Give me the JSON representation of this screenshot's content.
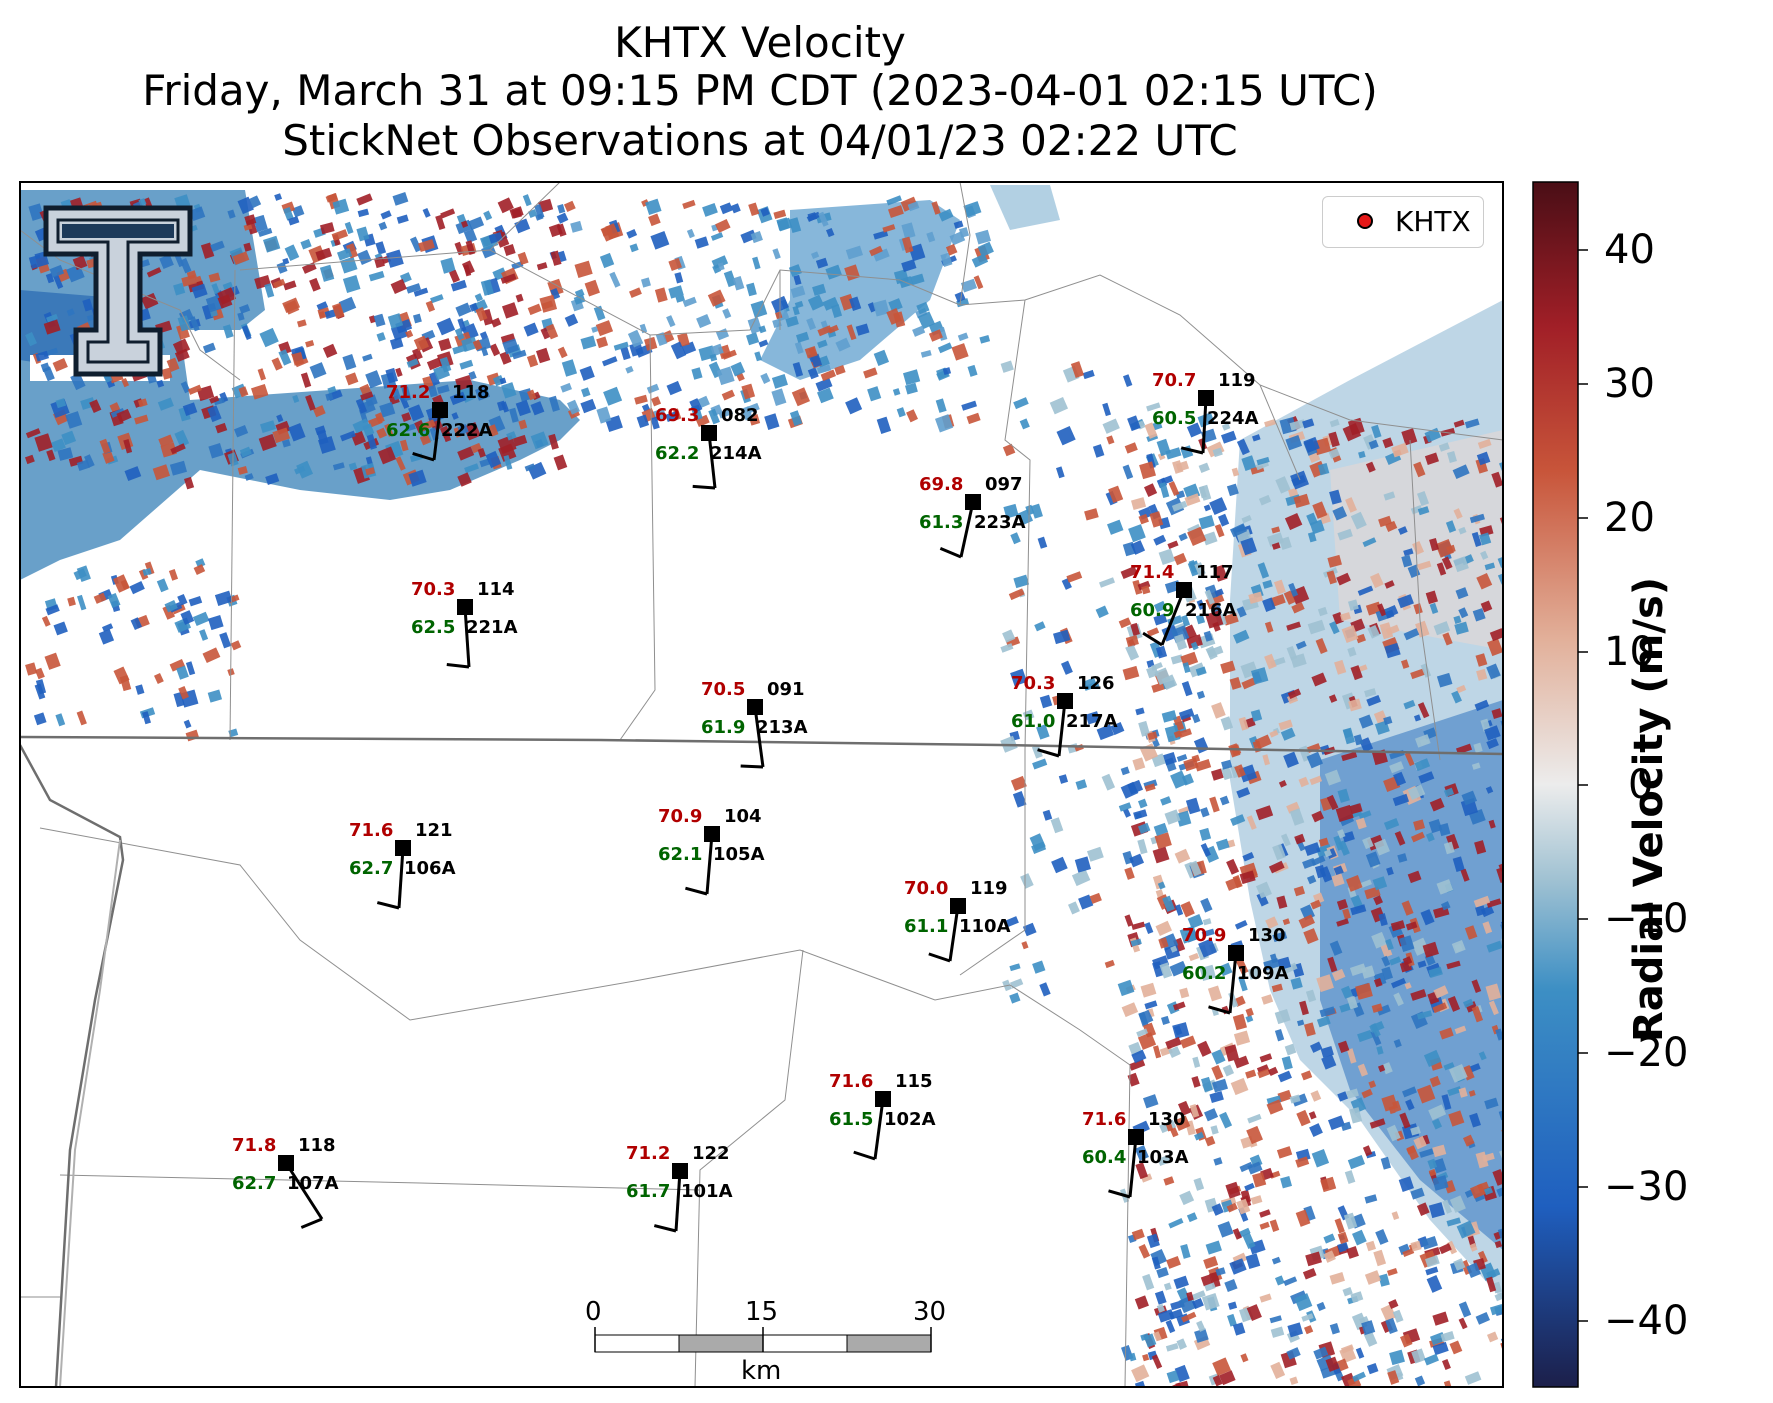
{
  "title": {
    "line1": "KHTX Velocity",
    "line2": "Friday, March 31 at 09:15 PM CDT (2023-04-01 02:15 UTC)",
    "line3": "StickNet Observations at 04/01/23 02:22 UTC"
  },
  "legend": {
    "label": "KHTX",
    "marker_color": "#e51818"
  },
  "colorbar": {
    "label": "Radial Velocity (m/s)",
    "ticks": [
      "40",
      "30",
      "20",
      "10",
      "0",
      "−10",
      "−20",
      "−30",
      "−40"
    ],
    "range": [
      -45,
      45
    ],
    "colors": [
      "#1c1f4a",
      "#1f5fbf",
      "#3d8fc4",
      "#9fc1d2",
      "#ececec",
      "#e2b09a",
      "#c8553a",
      "#a11f27",
      "#4a0e16"
    ]
  },
  "scale_bar": {
    "ticks": [
      "0",
      "15",
      "30"
    ],
    "unit": "km"
  },
  "logo": {
    "name": "Texas Tech Double T",
    "letter": "T"
  },
  "stations": [
    {
      "id": "222A",
      "temp": "71.2",
      "dew": "62.6",
      "dir": "118"
    },
    {
      "id": "214A",
      "temp": "69.3",
      "dew": "62.2",
      "dir": "082"
    },
    {
      "id": "224A",
      "temp": "70.7",
      "dew": "60.5",
      "dir": "119"
    },
    {
      "id": "223A",
      "temp": "69.8",
      "dew": "61.3",
      "dir": "097"
    },
    {
      "id": "221A",
      "temp": "70.3",
      "dew": "62.5",
      "dir": "114"
    },
    {
      "id": "216A",
      "temp": "71.4",
      "dew": "60.9",
      "dir": "117"
    },
    {
      "id": "213A",
      "temp": "70.5",
      "dew": "61.9",
      "dir": "091"
    },
    {
      "id": "217A",
      "temp": "70.3",
      "dew": "61.0",
      "dir": "126"
    },
    {
      "id": "106A",
      "temp": "71.6",
      "dew": "62.7",
      "dir": "121"
    },
    {
      "id": "105A",
      "temp": "70.9",
      "dew": "62.1",
      "dir": "104"
    },
    {
      "id": "110A",
      "temp": "70.0",
      "dew": "61.1",
      "dir": "119"
    },
    {
      "id": "109A",
      "temp": "70.9",
      "dew": "60.2",
      "dir": "130"
    },
    {
      "id": "102A",
      "temp": "71.6",
      "dew": "61.5",
      "dir": "115"
    },
    {
      "id": "103A",
      "temp": "71.6",
      "dew": "60.4",
      "dir": "130"
    },
    {
      "id": "107A",
      "temp": "71.8",
      "dew": "62.7",
      "dir": "118"
    },
    {
      "id": "101A",
      "temp": "71.2",
      "dew": "61.7",
      "dir": "122"
    }
  ]
}
